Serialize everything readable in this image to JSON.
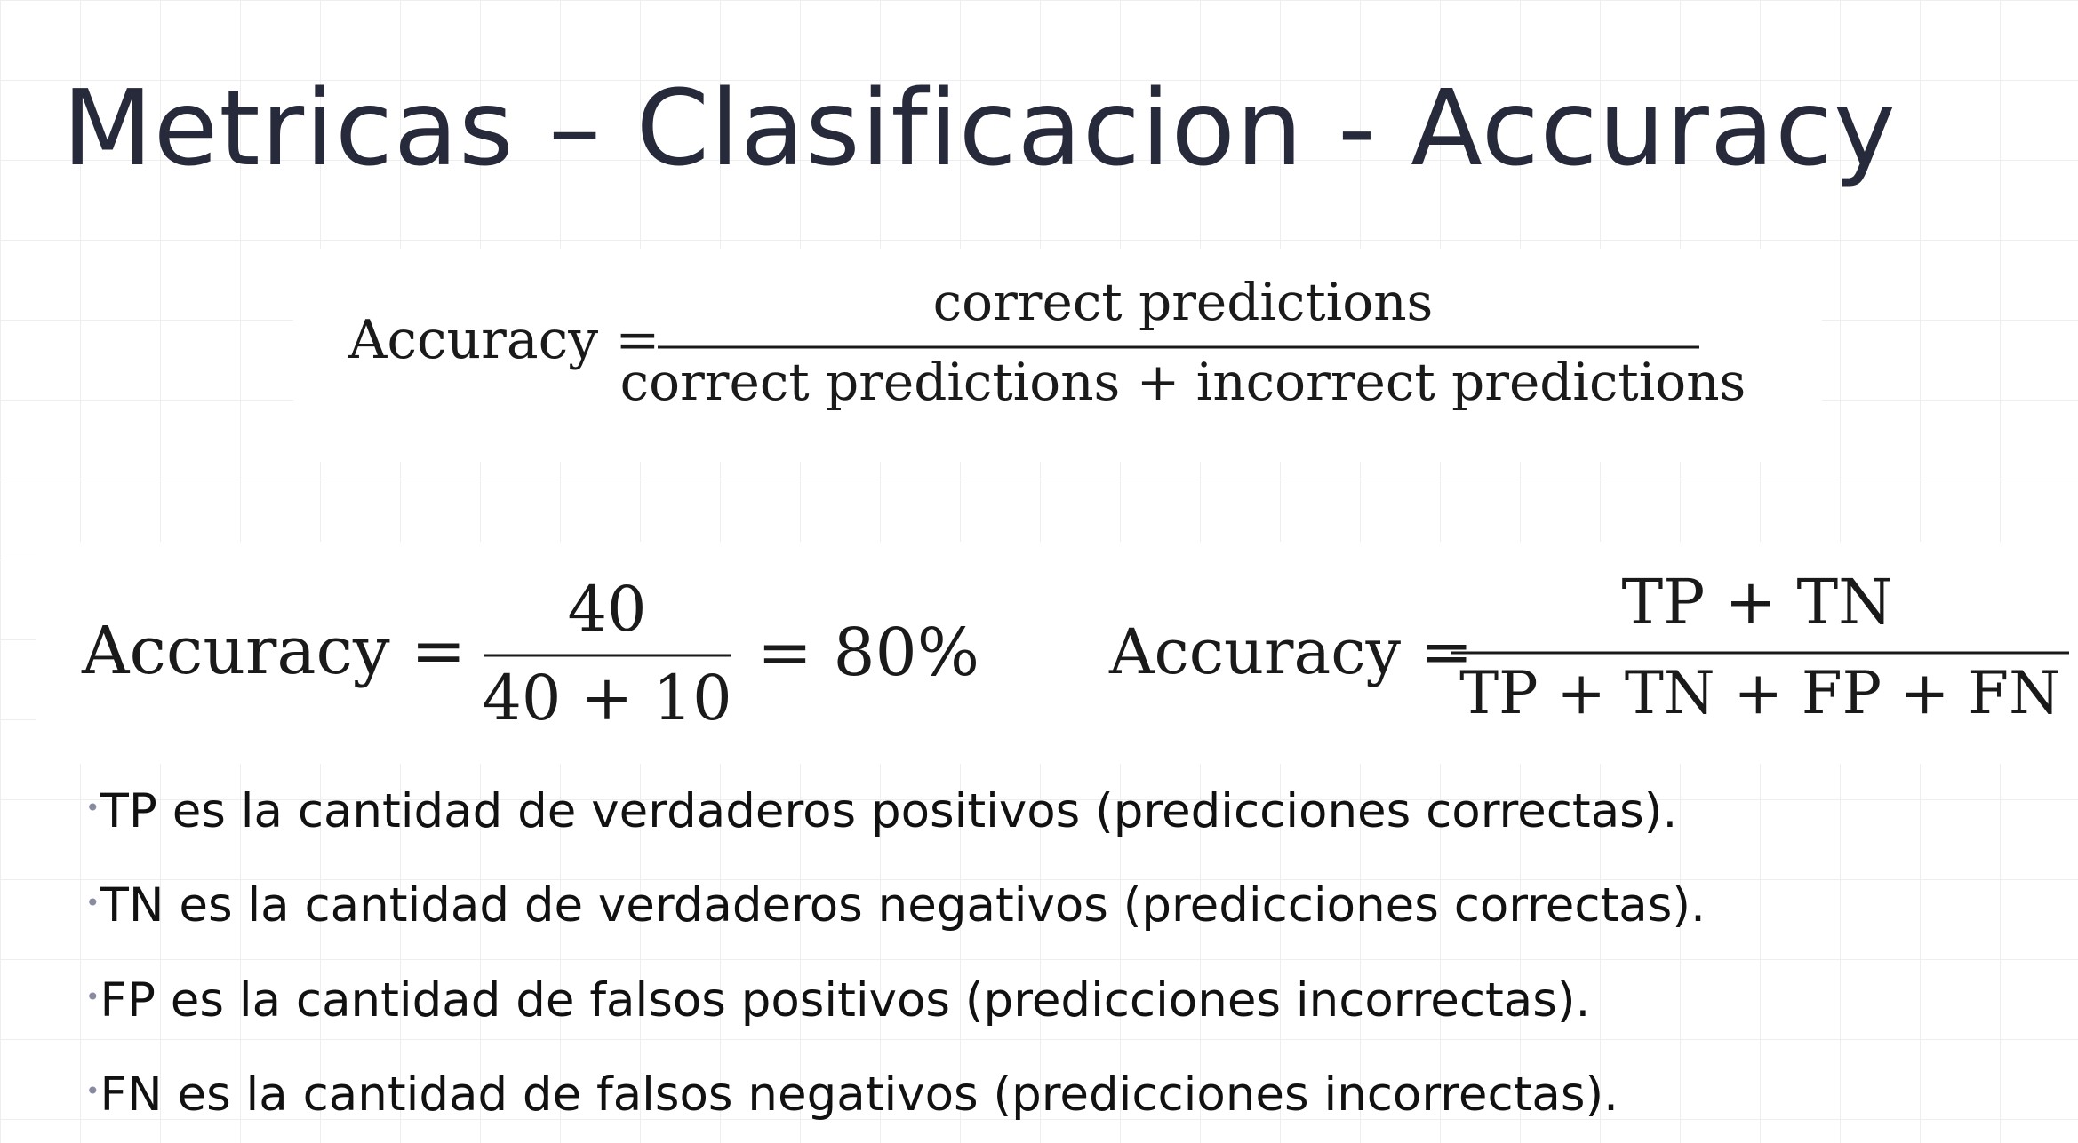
{
  "slide": {
    "title": "Metricas – Clasificacion - Accuracy"
  },
  "formula_general": {
    "lhs": "Accuracy =",
    "numerator": "correct predictions",
    "denominator": "correct predictions + incorrect predictions"
  },
  "formula_example": {
    "lhs": "Accuracy =",
    "numerator": "40",
    "denominator": "40 + 10",
    "result": "= 80%"
  },
  "formula_confusion": {
    "lhs": "Accuracy =",
    "numerator": "TP + TN",
    "denominator": "TP + TN + FP + FN"
  },
  "bullets": [
    {
      "marker": "•",
      "text": "TP es la cantidad de verdaderos positivos (predicciones correctas)."
    },
    {
      "marker": "•",
      "text": "TN es la cantidad de verdaderos negativos (predicciones correctas)."
    },
    {
      "marker": "•",
      "text": "FP es la cantidad de falsos positivos (predicciones incorrectas)."
    },
    {
      "marker": "•",
      "text": "FN es la cantidad de falsos negativos (predicciones incorrectas)."
    }
  ],
  "colors": {
    "title": "#272a3b",
    "text": "#111111",
    "grid": "#eeeeee",
    "bullet_marker": "#8a8ba0"
  }
}
